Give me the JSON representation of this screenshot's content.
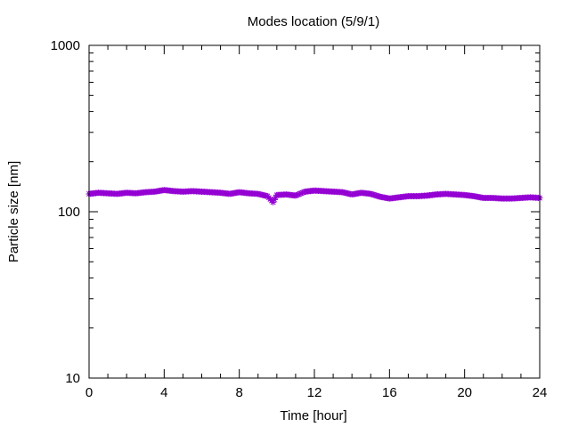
{
  "chart_data": {
    "type": "scatter",
    "title": "Modes location (5/9/1)",
    "xlabel": "Time [hour]",
    "ylabel": "Particle size [nm]",
    "xlim": [
      0,
      24
    ],
    "ylim": [
      10,
      1000
    ],
    "yscale": "log",
    "xticks": [
      0,
      4,
      8,
      12,
      16,
      20,
      24
    ],
    "xtick_labels": [
      "0",
      "4",
      "8",
      "12",
      "16",
      "20",
      "24"
    ],
    "yticks": [
      10,
      100,
      1000
    ],
    "ytick_labels": [
      "10",
      "100",
      "1000"
    ],
    "grid": false,
    "marker": "star",
    "color": "#9400d3",
    "series": [
      {
        "x": [
          0.0,
          0.5,
          1.0,
          1.5,
          2.0,
          2.5,
          3.0,
          3.5,
          4.0,
          4.5,
          5.0,
          5.5,
          6.0,
          6.5,
          7.0,
          7.5,
          8.0,
          8.5,
          9.0,
          9.5,
          9.8,
          10.0,
          10.5,
          11.0,
          11.5,
          12.0,
          12.5,
          13.0,
          13.5,
          14.0,
          14.5,
          15.0,
          15.5,
          16.0,
          16.5,
          17.0,
          17.5,
          18.0,
          18.5,
          19.0,
          19.5,
          20.0,
          20.5,
          21.0,
          21.5,
          22.0,
          22.5,
          23.0,
          23.5,
          24.0
        ],
        "y": [
          128,
          130,
          129,
          128,
          130,
          129,
          131,
          132,
          135,
          133,
          132,
          133,
          132,
          131,
          130,
          128,
          131,
          129,
          128,
          124,
          114,
          126,
          127,
          125,
          132,
          134,
          133,
          132,
          131,
          127,
          130,
          128,
          123,
          120,
          122,
          124,
          124,
          125,
          127,
          128,
          127,
          126,
          124,
          121,
          121,
          120,
          120,
          121,
          122,
          121
        ]
      }
    ]
  }
}
